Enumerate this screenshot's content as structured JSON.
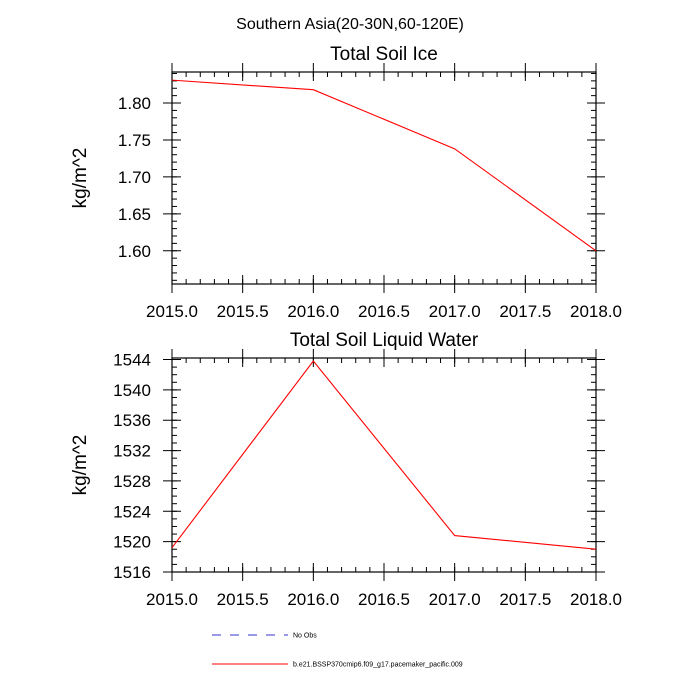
{
  "suptitle": "Southern Asia(20-30N,60-120E)",
  "chart_data": [
    {
      "type": "line",
      "title": "Total Soil Ice",
      "ylabel": "kg/m^2",
      "xlabel": "",
      "xlim": [
        2015.0,
        2018.0
      ],
      "ylim": [
        1.555,
        1.842
      ],
      "x_ticks": [
        2015.0,
        2015.5,
        2016.0,
        2016.5,
        2017.0,
        2017.5,
        2018.0
      ],
      "x_tick_labels": [
        "2015.0",
        "2015.5",
        "2016.0",
        "2016.5",
        "2017.0",
        "2017.5",
        "2018.0"
      ],
      "y_ticks": [
        1.6,
        1.65,
        1.7,
        1.75,
        1.8
      ],
      "y_tick_labels": [
        "1.60",
        "1.65",
        "1.70",
        "1.75",
        "1.80"
      ],
      "y_minor_step": 0.01,
      "x_minor_step": 0.1,
      "series": [
        {
          "color": "#ff0000",
          "x": [
            2015,
            2016,
            2017,
            2018
          ],
          "y": [
            1.831,
            1.818,
            1.738,
            1.6
          ]
        }
      ]
    },
    {
      "type": "line",
      "title": "Total Soil Liquid Water",
      "ylabel": "kg/m^2",
      "xlabel": "",
      "xlim": [
        2015.0,
        2018.0
      ],
      "ylim": [
        1516,
        1544.2
      ],
      "x_ticks": [
        2015.0,
        2015.5,
        2016.0,
        2016.5,
        2017.0,
        2017.5,
        2018.0
      ],
      "x_tick_labels": [
        "2015.0",
        "2015.5",
        "2016.0",
        "2016.5",
        "2017.0",
        "2017.5",
        "2018.0"
      ],
      "y_ticks": [
        1516,
        1520,
        1524,
        1528,
        1532,
        1536,
        1540,
        1544
      ],
      "y_tick_labels": [
        "1516",
        "1520",
        "1524",
        "1528",
        "1532",
        "1536",
        "1540",
        "1544"
      ],
      "y_minor_step": 1,
      "x_minor_step": 0.1,
      "series": [
        {
          "color": "#ff0000",
          "x": [
            2015,
            2016,
            2017,
            2018
          ],
          "y": [
            1519.2,
            1543.8,
            1520.8,
            1519.0
          ]
        }
      ]
    }
  ],
  "legend": [
    {
      "label": "No Obs",
      "color": "#3333cc",
      "style": "dashed"
    },
    {
      "label": "b.e21.BSSP370cmip6.f09_g17.pacemaker_pacific.009",
      "color": "#ff0000",
      "style": "solid"
    }
  ]
}
